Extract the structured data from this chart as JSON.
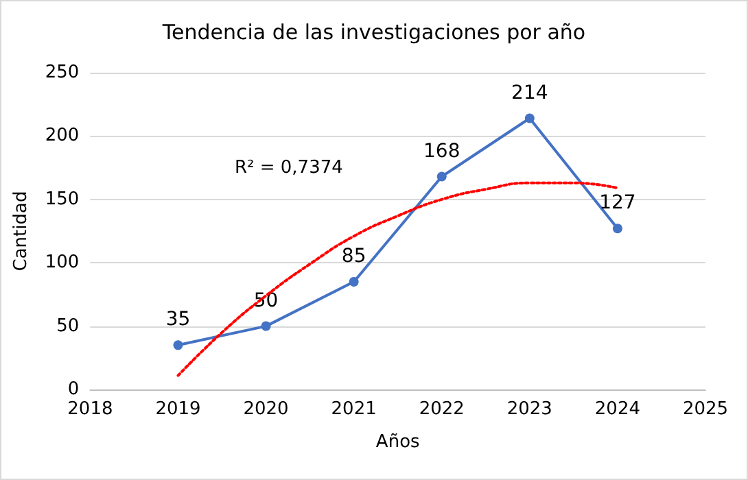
{
  "chart_data": {
    "type": "line",
    "title": "Tendencia de las investigaciones por año",
    "xlabel": "Años",
    "ylabel": "Cantidad",
    "x": [
      2019,
      2020,
      2021,
      2022,
      2023,
      2024
    ],
    "series": [
      {
        "color": "#4472c4",
        "values": [
          35,
          50,
          85,
          168,
          214,
          127
        ],
        "marker": "circle",
        "line_style": "solid"
      },
      {
        "color": "#ff0000",
        "x": [
          2019,
          2019.5,
          2020,
          2020.5,
          2021,
          2021.5,
          2022,
          2022.5,
          2023,
          2023.5,
          2024
        ],
        "values": [
          11,
          45,
          74,
          99,
          121,
          137,
          150,
          158,
          163,
          163,
          159
        ],
        "marker": "none",
        "line_style": "dotted",
        "data_labels": false
      }
    ],
    "annotations": [
      "R² = 0,7374"
    ],
    "data_labels": true,
    "xlim": [
      2018,
      2025
    ],
    "xticks": [
      2018,
      2019,
      2020,
      2021,
      2022,
      2023,
      2024,
      2025
    ],
    "ylim": [
      0,
      250
    ],
    "yticks": [
      0,
      50,
      100,
      150,
      200,
      250
    ],
    "grid": "y"
  }
}
